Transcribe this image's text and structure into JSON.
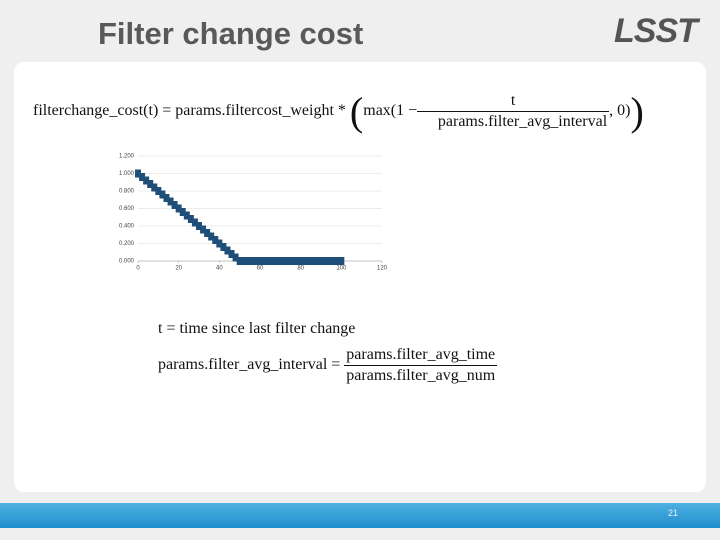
{
  "header": {
    "title": "Filter change cost",
    "logo": "LSST"
  },
  "equation_1": {
    "lhs": "filterchange_cost(t) = params.filtercost_weight *",
    "max": "max(1 −",
    "numerator": "t",
    "denominator": "params.filter_avg_interval",
    "tail": ", 0)"
  },
  "chart_data": {
    "type": "scatter",
    "color": "#1f4e79",
    "grid": true,
    "x": [
      0,
      2,
      4,
      6,
      8,
      10,
      12,
      14,
      16,
      18,
      20,
      22,
      24,
      26,
      28,
      30,
      32,
      34,
      36,
      38,
      40,
      42,
      44,
      46,
      48,
      50,
      52,
      54,
      56,
      58,
      60,
      62,
      64,
      66,
      68,
      70,
      72,
      74,
      76,
      78,
      80,
      82,
      84,
      86,
      88,
      90,
      92,
      94,
      96,
      98,
      100
    ],
    "values": [
      1,
      0.96,
      0.92,
      0.88,
      0.84,
      0.8,
      0.76,
      0.72,
      0.68,
      0.64,
      0.6,
      0.56,
      0.52,
      0.48,
      0.44,
      0.4,
      0.36,
      0.32,
      0.28,
      0.24,
      0.2,
      0.16,
      0.12,
      0.08,
      0.04,
      0,
      0,
      0,
      0,
      0,
      0,
      0,
      0,
      0,
      0,
      0,
      0,
      0,
      0,
      0,
      0,
      0,
      0,
      0,
      0,
      0,
      0,
      0,
      0,
      0,
      0
    ],
    "xlim": [
      0,
      120
    ],
    "xticks": [
      0,
      20,
      40,
      60,
      80,
      100,
      120
    ],
    "ylim": [
      0,
      1.2
    ],
    "yticks": [
      {
        "value": 0,
        "label": "0.000"
      },
      {
        "value": 0.2,
        "label": "0.200"
      },
      {
        "value": 0.4,
        "label": "0.400"
      },
      {
        "value": 0.6,
        "label": "0.600"
      },
      {
        "value": 0.8,
        "label": "0.800"
      },
      {
        "value": 1,
        "label": "1.000"
      },
      {
        "value": 1.2,
        "label": "1.200"
      }
    ]
  },
  "equation_2": {
    "text": "t = time since last filter change"
  },
  "equation_3": {
    "lhs": "params.filter_avg_interval =",
    "numerator": "params.filter_avg_time",
    "denominator": "params.filter_avg_num"
  },
  "footer": {
    "page_number": "21"
  }
}
